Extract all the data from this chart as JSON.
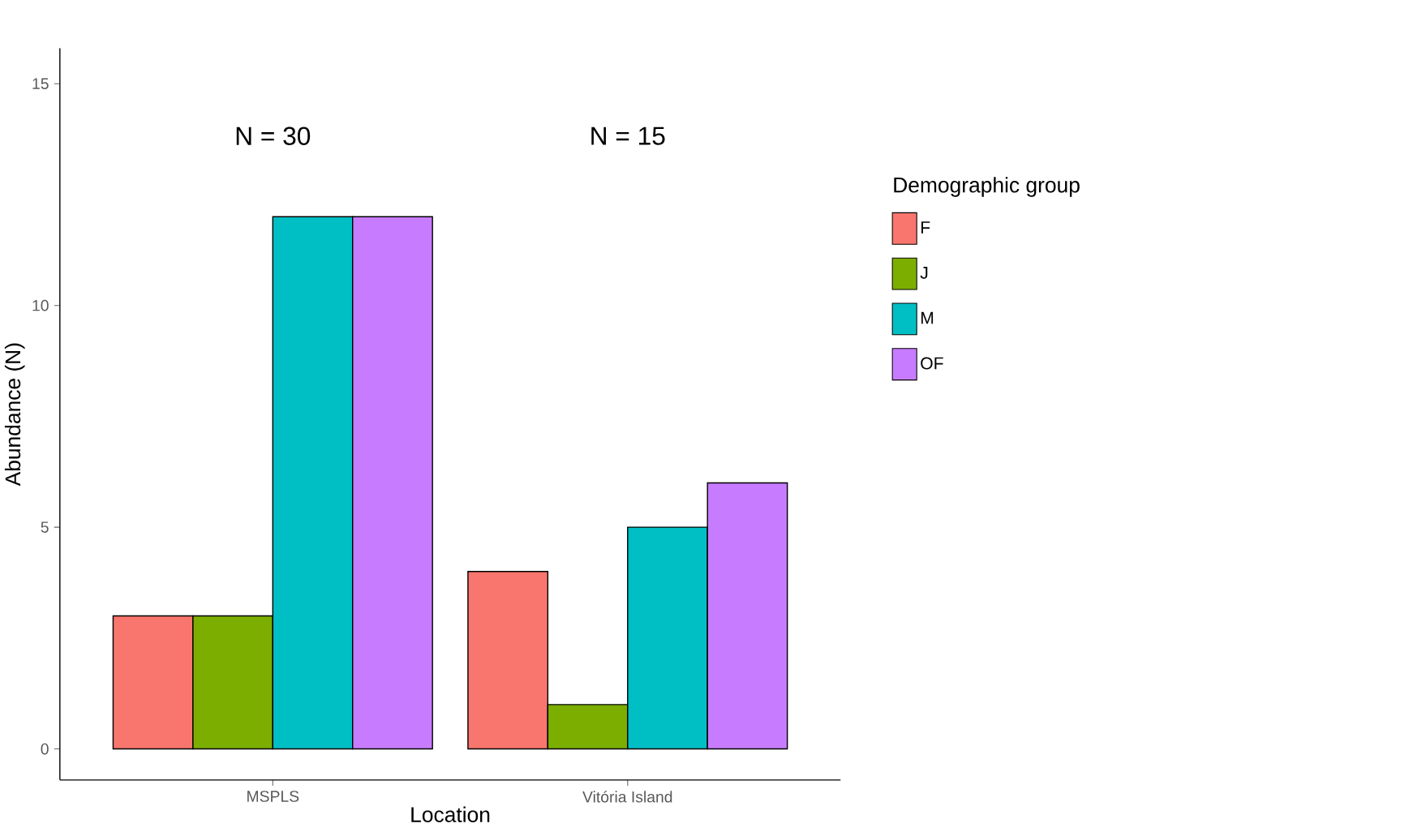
{
  "chart_data": {
    "type": "bar",
    "xlabel": "Location",
    "ylabel": "Abundance (N)",
    "legend_title": "Demographic group",
    "legend": "right",
    "grid": false,
    "categories": [
      "MSPLS",
      "Vitória Island"
    ],
    "series": [
      {
        "name": "F",
        "color": "#f8766d",
        "values": [
          3,
          4
        ]
      },
      {
        "name": "J",
        "color": "#7cae00",
        "values": [
          3,
          1
        ]
      },
      {
        "name": "M",
        "color": "#00bfc4",
        "values": [
          12,
          5
        ]
      },
      {
        "name": "OF",
        "color": "#c77cff",
        "values": [
          12,
          6
        ]
      }
    ],
    "ylim": [
      -0.7,
      15.8
    ],
    "yticks": [
      0,
      5,
      10,
      15
    ],
    "annotations": [
      "N = 30",
      "N = 15"
    ]
  }
}
